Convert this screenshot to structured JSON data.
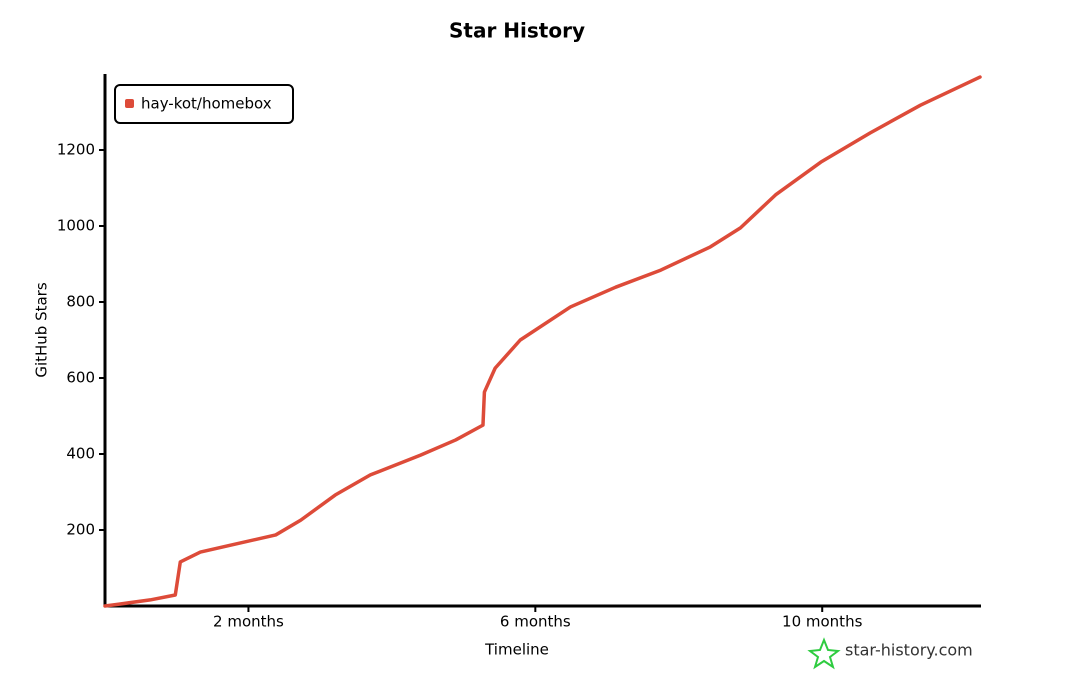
{
  "chart_data": {
    "type": "line",
    "title": "Star History",
    "x_label": "Timeline",
    "y_label": "GitHub Stars",
    "xlim": [
      0,
      12.2
    ],
    "ylim": [
      0,
      1400
    ],
    "xticks": [
      {
        "value": 2,
        "label": "2 months"
      },
      {
        "value": 6,
        "label": "6 months"
      },
      {
        "value": 10,
        "label": "10 months"
      }
    ],
    "yticks": [
      200,
      400,
      600,
      800,
      1000,
      1200
    ],
    "legend": "top-left",
    "watermark": "star-history.com",
    "series": [
      {
        "name": "hay-kot/homebox",
        "color": "#dd4b39",
        "x": [
          0,
          0.2,
          0.63,
          0.98,
          1.05,
          1.33,
          1.75,
          2.38,
          2.73,
          3.21,
          3.7,
          4.4,
          4.89,
          5.27,
          5.29,
          5.44,
          5.79,
          6.49,
          7.12,
          7.75,
          8.44,
          8.86,
          9.35,
          9.98,
          10.67,
          11.37,
          12.2
        ],
        "values": [
          0,
          5,
          16,
          29,
          116,
          142,
          160,
          187,
          226,
          292,
          345,
          397,
          437,
          476,
          563,
          626,
          700,
          787,
          839,
          884,
          945,
          995,
          1082,
          1168,
          1245,
          1318,
          1392
        ]
      }
    ]
  }
}
